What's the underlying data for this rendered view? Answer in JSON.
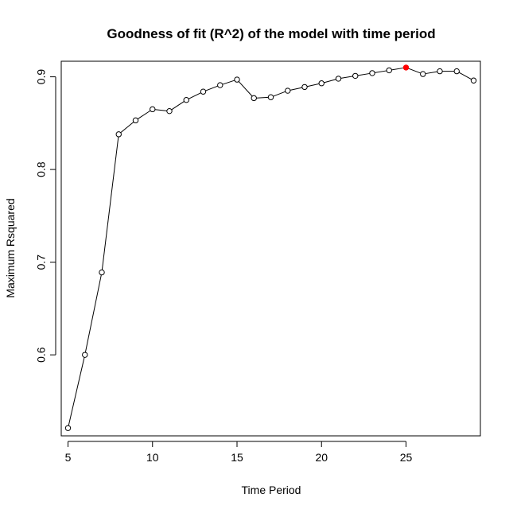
{
  "chart_data": {
    "type": "line",
    "title": "Goodness of fit (R^2) of the model with time period",
    "xlabel": "Time Period",
    "ylabel": "Maximum Rsquared",
    "xlim": [
      4.6,
      29.4
    ],
    "ylim": [
      0.5126,
      0.9168
    ],
    "xticks": [
      5,
      10,
      15,
      20,
      25
    ],
    "yticks": [
      0.6,
      0.7,
      0.8,
      0.9
    ],
    "ytick_labels": [
      "0.6",
      "0.7",
      "0.8",
      "0.9"
    ],
    "grid": false,
    "series": [
      {
        "x": [
          5,
          6,
          7,
          8,
          9,
          10,
          11,
          12,
          13,
          14,
          15,
          16,
          17,
          18,
          19,
          20,
          21,
          22,
          23,
          24,
          25,
          26,
          27,
          28,
          29
        ],
        "values": [
          0.521,
          0.6,
          0.689,
          0.838,
          0.853,
          0.865,
          0.863,
          0.875,
          0.884,
          0.891,
          0.897,
          0.877,
          0.878,
          0.885,
          0.889,
          0.893,
          0.898,
          0.901,
          0.904,
          0.907,
          0.91,
          0.903,
          0.906,
          0.906,
          0.896
        ],
        "line_color": "#000000",
        "marker": "open-circle"
      }
    ],
    "highlight": {
      "x": 25,
      "y": 0.91,
      "color": "#ff0000"
    }
  }
}
